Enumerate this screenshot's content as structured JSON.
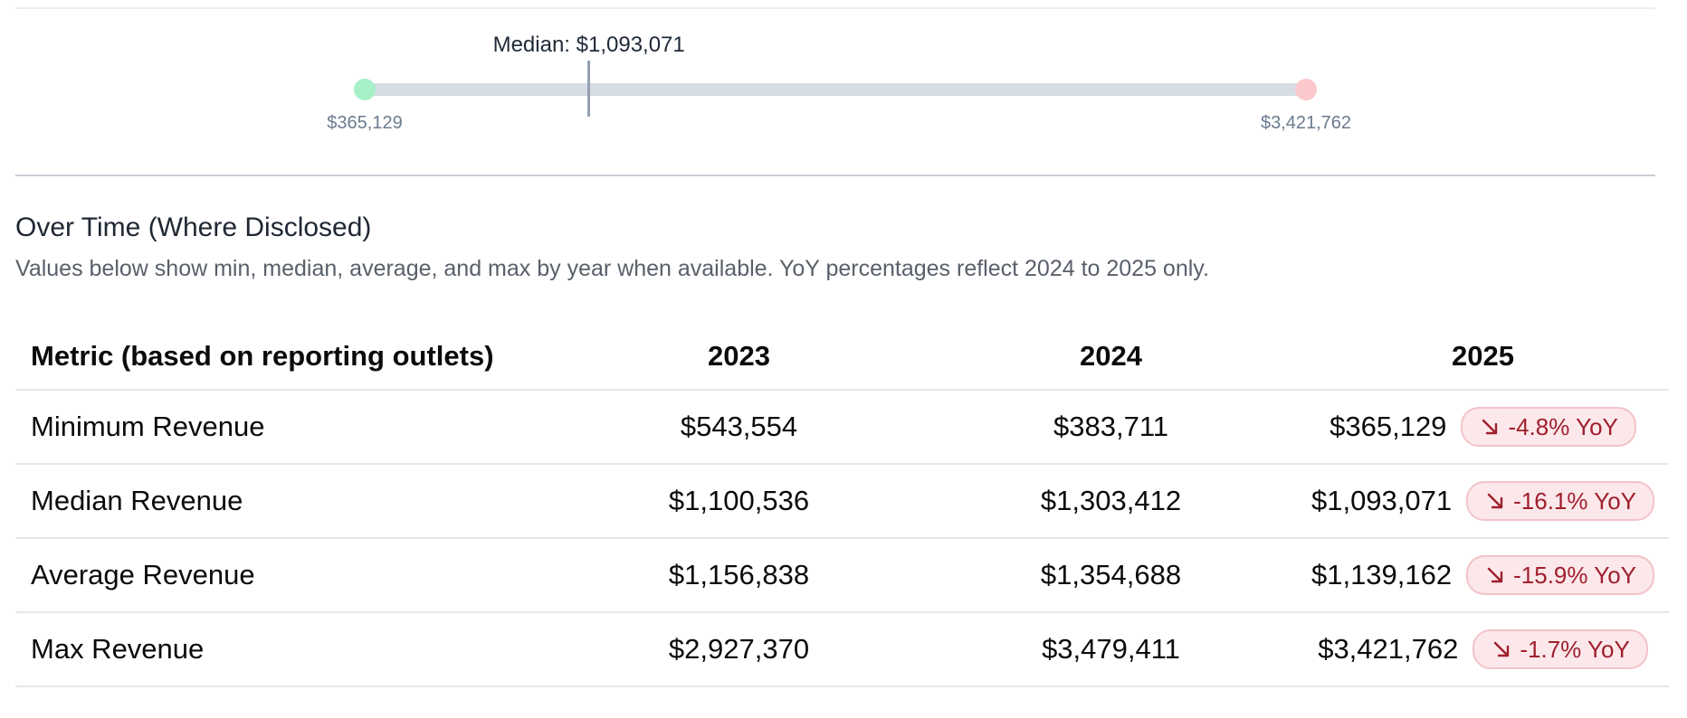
{
  "range_bar": {
    "min_label": "$365,129",
    "max_label": "$3,421,762",
    "median_label": "Median: $1,093,071",
    "min_value": 365129,
    "max_value": 3421762,
    "median_value": 1093071,
    "min_color": "#a7f0c8",
    "max_color": "#fbc8cb",
    "track_color": "#d5dce4",
    "marker_color": "#94a0b1"
  },
  "section": {
    "title": "Over Time (Where Disclosed)",
    "description": "Values below show min, median, average, and max by year when available. YoY percentages reflect 2024 to 2025 only."
  },
  "table": {
    "headers": [
      "Metric (based on reporting outlets)",
      "2023",
      "2024",
      "2025"
    ],
    "rows": [
      {
        "metric": "Minimum Revenue",
        "y2023": "$543,554",
        "y2024": "$383,711",
        "y2025": "$365,129",
        "yoy": "-4.8% YoY",
        "yoy_icon": "trend-down-arrow-icon"
      },
      {
        "metric": "Median Revenue",
        "y2023": "$1,100,536",
        "y2024": "$1,303,412",
        "y2025": "$1,093,071",
        "yoy": "-16.1% YoY",
        "yoy_icon": "trend-down-arrow-icon"
      },
      {
        "metric": "Average Revenue",
        "y2023": "$1,156,838",
        "y2024": "$1,354,688",
        "y2025": "$1,139,162",
        "yoy": "-15.9% YoY",
        "yoy_icon": "trend-down-arrow-icon"
      },
      {
        "metric": "Max Revenue",
        "y2023": "$2,927,370",
        "y2024": "$3,479,411",
        "y2025": "$3,421,762",
        "yoy": "-1.7% YoY",
        "yoy_icon": "trend-down-arrow-icon"
      }
    ],
    "badge_colors": {
      "background": "#fce8ea",
      "border": "#f3c3c9",
      "text": "#9f1f2d"
    }
  }
}
